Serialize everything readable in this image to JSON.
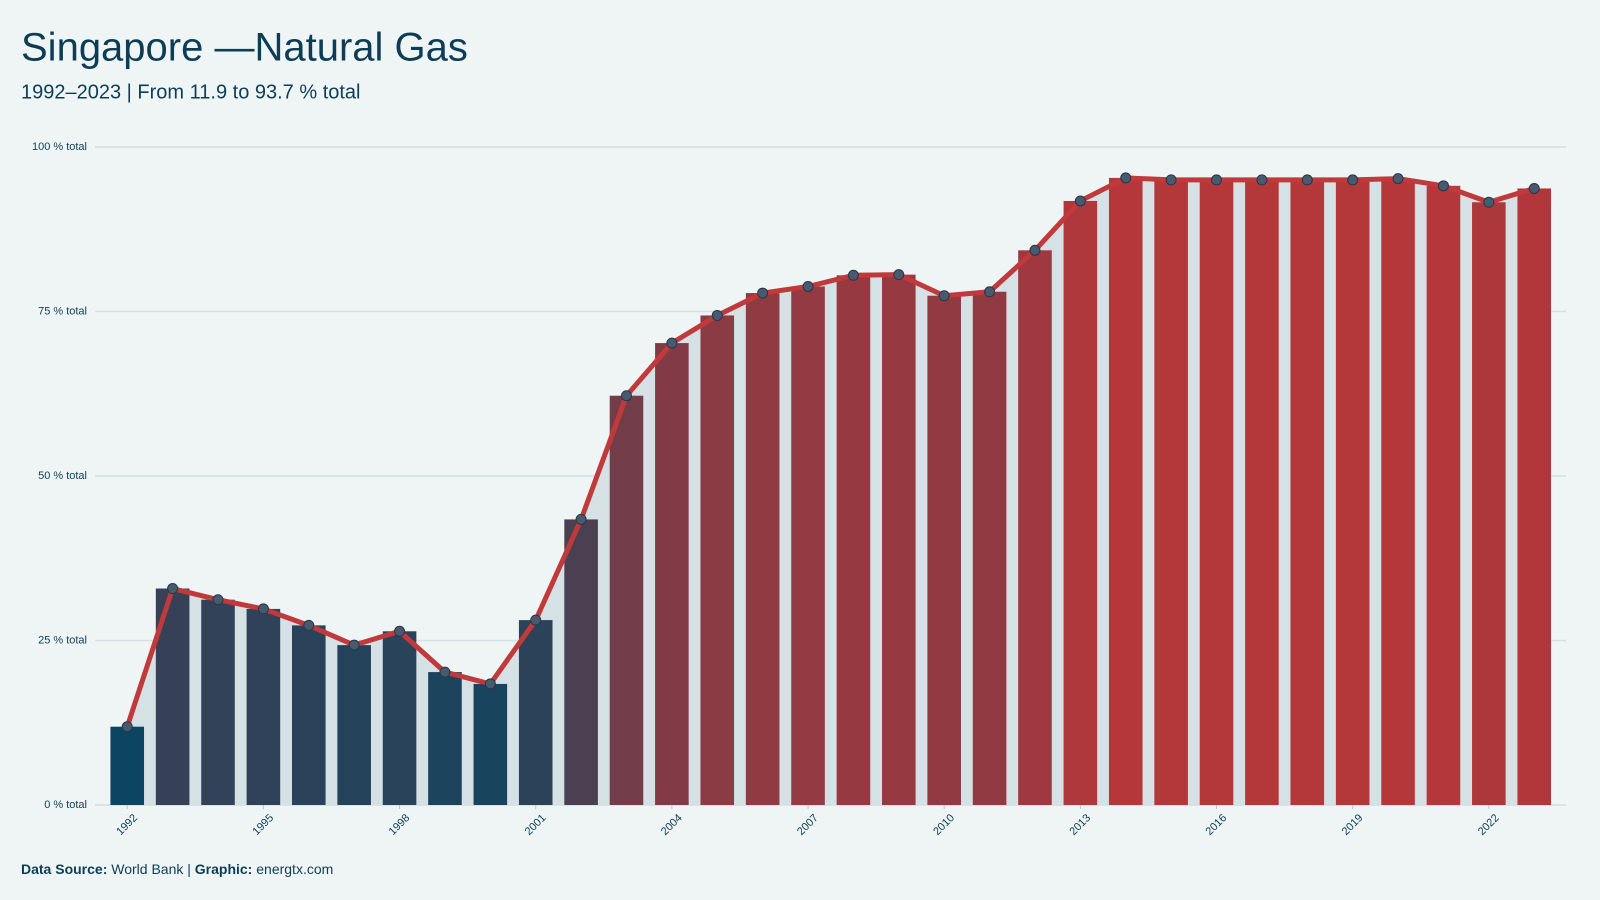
{
  "chart_data": {
    "type": "bar",
    "title": "Singapore —Natural Gas",
    "subtitle": "1992–2023 | From 11.9 to 93.7 % total",
    "x": [
      1992,
      1993,
      1994,
      1995,
      1996,
      1997,
      1998,
      1999,
      2000,
      2001,
      2002,
      2003,
      2004,
      2005,
      2006,
      2007,
      2008,
      2009,
      2010,
      2011,
      2012,
      2013,
      2014,
      2015,
      2016,
      2017,
      2018,
      2019,
      2020,
      2021,
      2022,
      2023
    ],
    "values": [
      11.9,
      32.9,
      31.2,
      29.8,
      27.3,
      24.3,
      26.4,
      20.2,
      18.4,
      28.1,
      43.4,
      62.2,
      70.2,
      74.4,
      77.8,
      78.8,
      80.5,
      80.6,
      77.4,
      78.0,
      84.3,
      91.8,
      95.3,
      95.0,
      95.0,
      95.0,
      95.0,
      95.0,
      95.2,
      94.1,
      91.6,
      93.7
    ],
    "colors": [
      "#0b4561",
      "#b5373a"
    ],
    "line_color": "#c0393b",
    "marker_color": "#4a5a6e",
    "area_color": "#d6e1e5",
    "xlim": [
      1991.4,
      2023.7
    ],
    "xticks": [
      1992,
      1995,
      1998,
      2001,
      2004,
      2007,
      2010,
      2013,
      2016,
      2019,
      2022
    ],
    "ylim": [
      0,
      100
    ],
    "yticks": [
      {
        "value": 0,
        "label": "0 % total"
      },
      {
        "value": 25,
        "label": "25 % total"
      },
      {
        "value": 50,
        "label": "50 % total"
      },
      {
        "value": 75,
        "label": "75 % total"
      },
      {
        "value": 100,
        "label": "100 % total"
      }
    ],
    "grid": true,
    "footer": {
      "source_label": "Data Source:",
      "source": "World Bank",
      "separator": "|",
      "graphic_label": "Graphic:",
      "graphic": "energtx.com"
    }
  }
}
